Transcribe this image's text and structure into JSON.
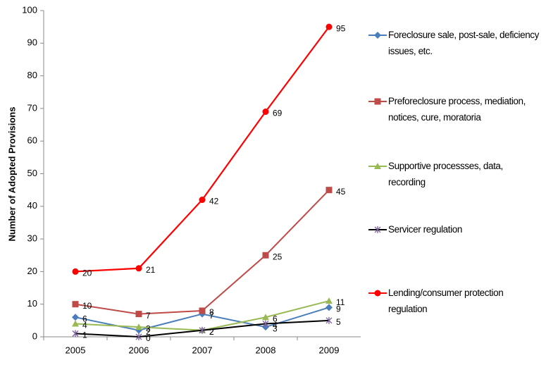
{
  "chart_data": {
    "type": "line",
    "y_label": "Number of Adopted Provisions",
    "categories": [
      "2005",
      "2006",
      "2007",
      "2008",
      "2009"
    ],
    "series": [
      {
        "name": "Foreclosure sale, post-sale, deficiency issues, etc.",
        "color": "#4a7ebb",
        "line_color": "#4a7ebb",
        "marker": "diamond",
        "values": [
          6,
          2,
          7,
          3,
          9
        ]
      },
      {
        "name": "Preforeclosure process, mediation, notices, cure, moratoria",
        "color": "#be4b48",
        "line_color": "#be4b48",
        "marker": "square",
        "values": [
          10,
          7,
          8,
          25,
          45
        ]
      },
      {
        "name": "Supportive processses, data, recording",
        "color": "#98b954",
        "line_color": "#98b954",
        "marker": "triangle",
        "values": [
          4,
          3,
          2,
          6,
          11
        ]
      },
      {
        "name": "Servicer regulation",
        "color": "#7d60a0",
        "line_color": "#000000",
        "marker": "star",
        "values": [
          1,
          0,
          2,
          4,
          5
        ]
      },
      {
        "name": "Lending/consumer protection regulation",
        "color": "#ff0000",
        "line_color": "#ff0000",
        "marker": "circle",
        "values": [
          20,
          21,
          42,
          69,
          95
        ]
      }
    ],
    "ylim": [
      0,
      100
    ],
    "yticks": [
      0,
      10,
      20,
      30,
      40,
      50,
      60,
      70,
      80,
      90,
      100
    ],
    "grid": false,
    "legend": "right"
  }
}
